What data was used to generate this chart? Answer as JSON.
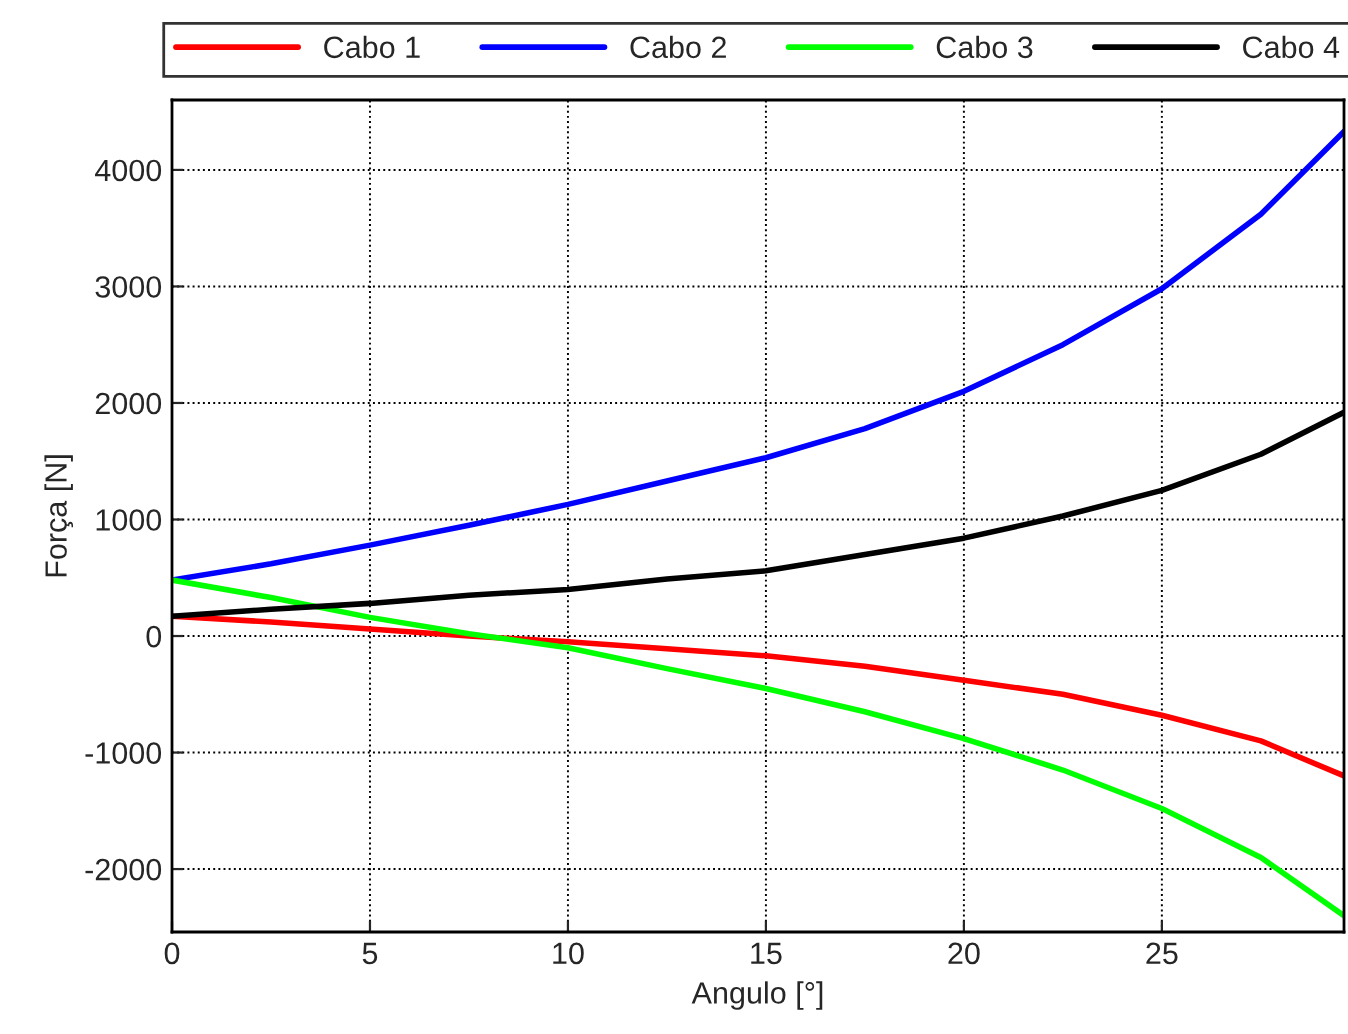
{
  "chart_data": {
    "type": "line",
    "xlabel": "Angulo [°]",
    "ylabel": "Força [N]",
    "x": [
      0,
      2.5,
      5,
      7.5,
      10,
      12.5,
      15,
      17.5,
      20,
      22.5,
      25,
      27.5,
      29.6
    ],
    "series": [
      {
        "name": "Cabo 1",
        "color": "#ff0000",
        "values": [
          170,
          120,
          60,
          0,
          -50,
          -110,
          -170,
          -260,
          -380,
          -500,
          -680,
          -900,
          -1200
        ]
      },
      {
        "name": "Cabo 2",
        "color": "#0000ff",
        "values": [
          480,
          620,
          780,
          950,
          1130,
          1330,
          1530,
          1780,
          2100,
          2500,
          2980,
          3620,
          4330
        ]
      },
      {
        "name": "Cabo 3",
        "color": "#00ff00",
        "values": [
          480,
          330,
          160,
          20,
          -100,
          -280,
          -450,
          -650,
          -880,
          -1150,
          -1480,
          -1900,
          -2400
        ]
      },
      {
        "name": "Cabo 4",
        "color": "#000000",
        "values": [
          170,
          230,
          280,
          350,
          400,
          490,
          560,
          700,
          840,
          1030,
          1250,
          1560,
          1920
        ]
      }
    ],
    "xlim": [
      0,
      29.6
    ],
    "xticks": [
      0,
      5,
      10,
      15,
      20,
      25
    ],
    "ylim": [
      -2540,
      4600
    ],
    "yticks": [
      -2000,
      -1000,
      0,
      1000,
      2000,
      3000,
      4000
    ],
    "grid": true,
    "legend": "top",
    "line_style": "solid",
    "marker": "none"
  }
}
